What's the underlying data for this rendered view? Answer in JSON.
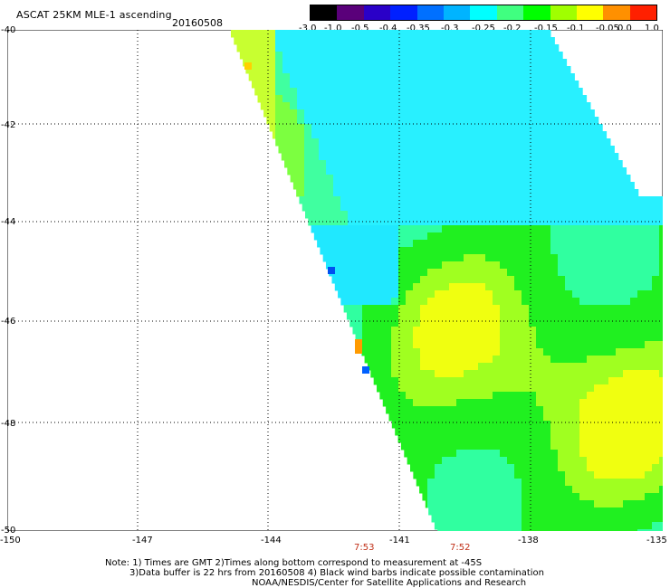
{
  "header": {
    "title": "ASCAT 25KM MLE-1 ascending",
    "date": "20160508"
  },
  "colorbar": {
    "labels": [
      "-3.0",
      "-1.0",
      "-0.5",
      "-0.4",
      "-0.35",
      "-0.3",
      "-0.25",
      "-0.2",
      "-0.15",
      "-0.1",
      "-0.05",
      "0.0",
      "1.0"
    ],
    "colors": [
      "#000000",
      "#5a007a",
      "#2a00c8",
      "#0020ff",
      "#0070ff",
      "#00b4ff",
      "#00ffff",
      "#40ff80",
      "#00ff00",
      "#a0ff00",
      "#ffff00",
      "#ff9000",
      "#ff2000"
    ]
  },
  "map": {
    "lat_labels": [
      "-40",
      "-42",
      "-44",
      "-46",
      "-48",
      "-50"
    ],
    "lon_labels": [
      "-150",
      "-147",
      "-144",
      "-141",
      "-138",
      "-135"
    ],
    "swath_times": [
      "7:53",
      "7:52"
    ]
  },
  "footer": {
    "note_line1": "Note: 1) Times are GMT 2)Times along bottom correspond to measurement at -45S",
    "note_line2": "3)Data buffer is 22 hrs from 20160508 4) Black wind barbs indicate possible contamination",
    "credit": "NOAA/NESDIS/Center for Satellite Applications and Research"
  }
}
